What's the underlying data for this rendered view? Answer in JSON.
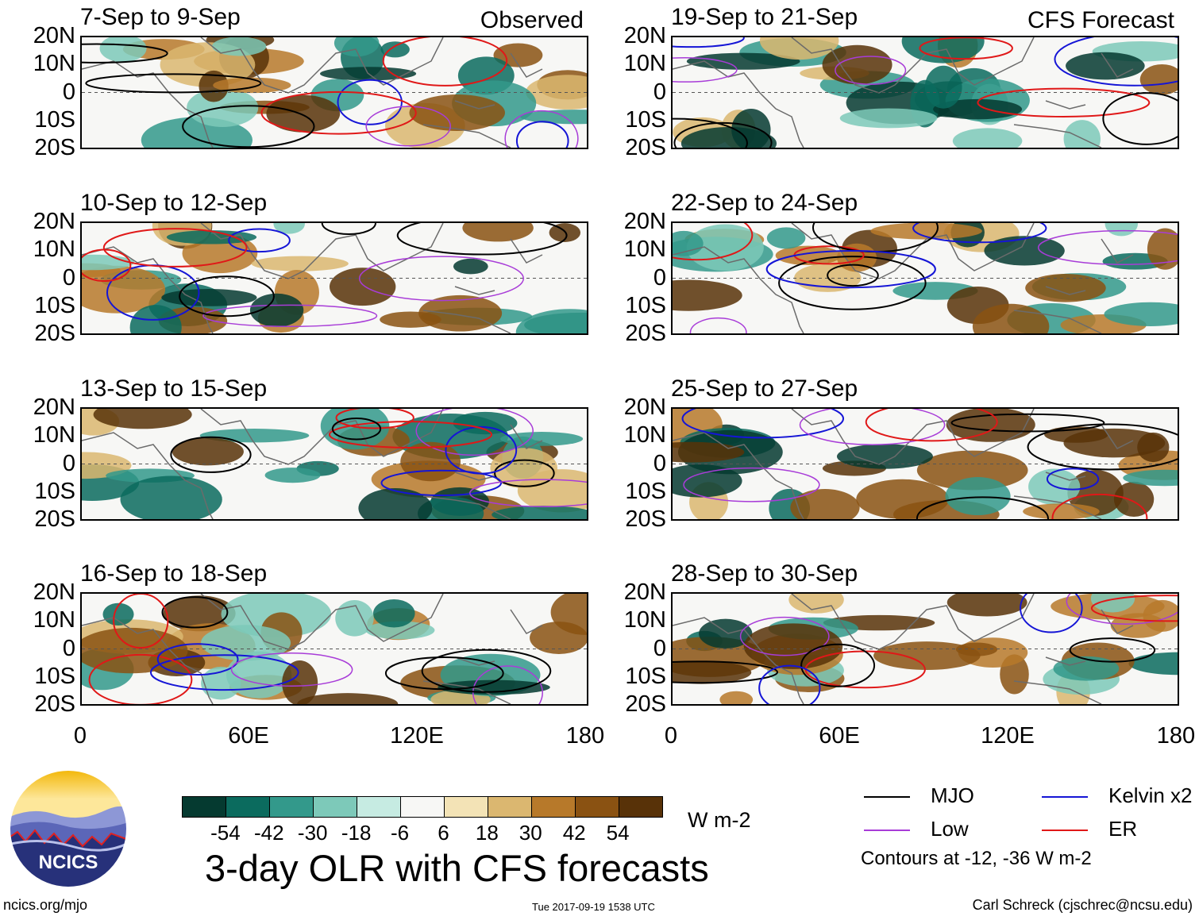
{
  "panels_left": [
    {
      "title": "7-Sep to 9-Sep",
      "tag": "Observed"
    },
    {
      "title": "10-Sep to 12-Sep",
      "tag": ""
    },
    {
      "title": "13-Sep to 15-Sep",
      "tag": ""
    },
    {
      "title": "16-Sep to 18-Sep",
      "tag": ""
    }
  ],
  "panels_right": [
    {
      "title": "19-Sep to 21-Sep",
      "tag": "CFS Forecast"
    },
    {
      "title": "22-Sep to 24-Sep",
      "tag": ""
    },
    {
      "title": "25-Sep to 27-Sep",
      "tag": ""
    },
    {
      "title": "28-Sep to 30-Sep",
      "tag": ""
    }
  ],
  "lat_labels": [
    "20N",
    "10N",
    "0",
    "10S",
    "20S"
  ],
  "lon_labels": [
    "0",
    "60E",
    "120E",
    "180"
  ],
  "colorbar": {
    "labels": [
      "-54",
      "-42",
      "-30",
      "-18",
      "-6",
      "6",
      "18",
      "30",
      "42",
      "54"
    ],
    "colors": [
      "#053a30",
      "#0b6b5e",
      "#33998b",
      "#7dc9b9",
      "#c6ebe2",
      "#f7f7f5",
      "#f3e3b6",
      "#dbb770",
      "#b7792a",
      "#8a5212",
      "#583208"
    ],
    "units": "W m-2"
  },
  "title": "3-day OLR with CFS forecasts",
  "legend": {
    "items": [
      {
        "label": "MJO",
        "color": "#000000"
      },
      {
        "label": "Kelvin x2",
        "color": "#1515d6"
      },
      {
        "label": "Low",
        "color": "#a83cd8"
      },
      {
        "label": "ER",
        "color": "#e01818"
      }
    ],
    "note": "Contours at -12, -36 W m-2"
  },
  "logo_text": "NCICS",
  "footer": {
    "left": "ncics.org/mjo",
    "center": "Tue 2017-09-19 1538 UTC",
    "right": "Carl Schreck (cjschrec@ncsu.edu)"
  }
}
